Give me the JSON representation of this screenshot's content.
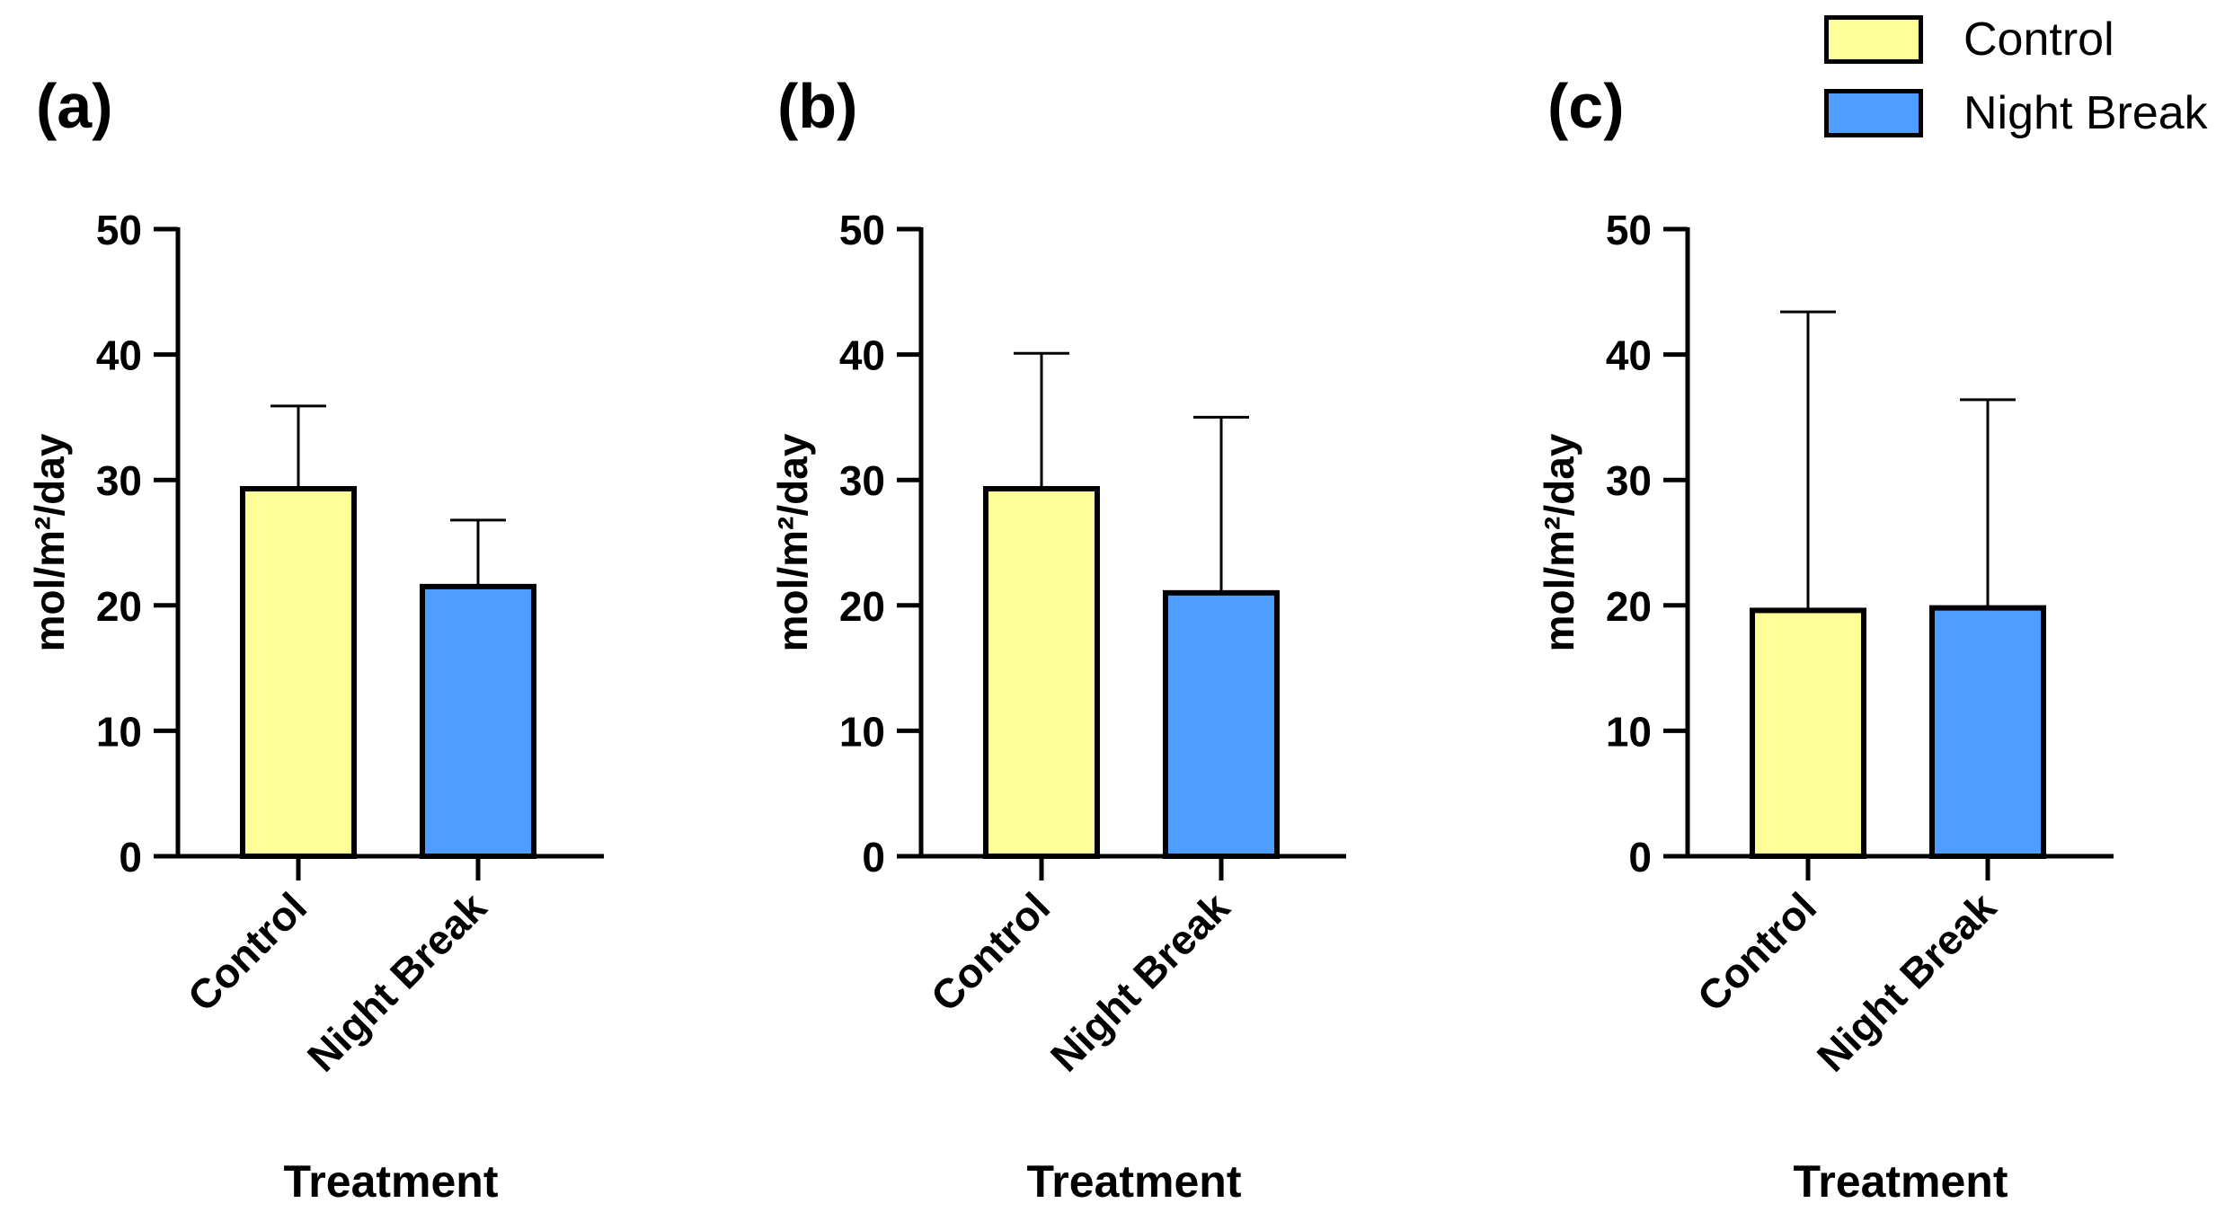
{
  "legend": [
    {
      "label": "Control",
      "color": "#FFFF99"
    },
    {
      "label": "Night Break",
      "color": "#4F9EFF"
    }
  ],
  "chart_data": [
    {
      "panel_label": "(a)",
      "type": "bar",
      "categories": [
        "Control",
        "Night Break"
      ],
      "values": [
        29.3,
        21.5
      ],
      "error_upper": [
        35.9,
        26.8
      ],
      "colors": [
        "#FFFF99",
        "#4F9EFF"
      ],
      "xlabel": "Treatment",
      "ylabel": "mol/m²/day",
      "ylim": [
        0,
        50
      ],
      "yticks": [
        "0",
        "10",
        "20",
        "30",
        "40",
        "50"
      ]
    },
    {
      "panel_label": "(b)",
      "type": "bar",
      "categories": [
        "Control",
        "Night Break"
      ],
      "values": [
        29.3,
        21.0
      ],
      "error_upper": [
        40.1,
        35.0
      ],
      "colors": [
        "#FFFF99",
        "#4F9EFF"
      ],
      "xlabel": "Treatment",
      "ylabel": "mol/m²/day",
      "ylim": [
        0,
        50
      ],
      "yticks": [
        "0",
        "10",
        "20",
        "30",
        "40",
        "50"
      ]
    },
    {
      "panel_label": "(c)",
      "type": "bar",
      "categories": [
        "Control",
        "Night Break"
      ],
      "values": [
        19.6,
        19.8
      ],
      "error_upper": [
        43.4,
        36.4
      ],
      "colors": [
        "#FFFF99",
        "#4F9EFF"
      ],
      "xlabel": "Treatment",
      "ylabel": "mol/m²/day",
      "ylim": [
        0,
        50
      ],
      "yticks": [
        "0",
        "10",
        "20",
        "30",
        "40",
        "50"
      ]
    }
  ]
}
